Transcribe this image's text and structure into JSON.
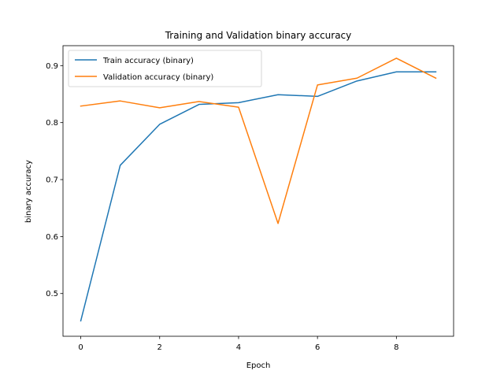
{
  "chart_data": {
    "type": "line",
    "title": "Training and Validation binary accuracy",
    "xlabel": "Epoch",
    "ylabel": "binary accuracy",
    "x": [
      0,
      1,
      2,
      3,
      4,
      5,
      6,
      7,
      8,
      9
    ],
    "xlim": [
      -0.45,
      9.45
    ],
    "ylim": [
      0.425,
      0.935
    ],
    "xticks": [
      0,
      2,
      4,
      6,
      8
    ],
    "yticks": [
      0.5,
      0.6,
      0.7,
      0.8,
      0.9
    ],
    "xtick_labels": [
      "0",
      "2",
      "4",
      "6",
      "8"
    ],
    "ytick_labels": [
      "0.5",
      "0.6",
      "0.7",
      "0.8",
      "0.9"
    ],
    "grid": false,
    "legend_position": "upper-left",
    "series": [
      {
        "name": "Train accuracy (binary)",
        "color": "#1f77b4",
        "values": [
          0.452,
          0.725,
          0.797,
          0.832,
          0.835,
          0.849,
          0.846,
          0.873,
          0.889,
          0.889
        ]
      },
      {
        "name": "Validation accuracy (binary)",
        "color": "#ff7f0e",
        "values": [
          0.829,
          0.838,
          0.826,
          0.837,
          0.827,
          0.623,
          0.866,
          0.878,
          0.913,
          0.878
        ]
      }
    ]
  }
}
